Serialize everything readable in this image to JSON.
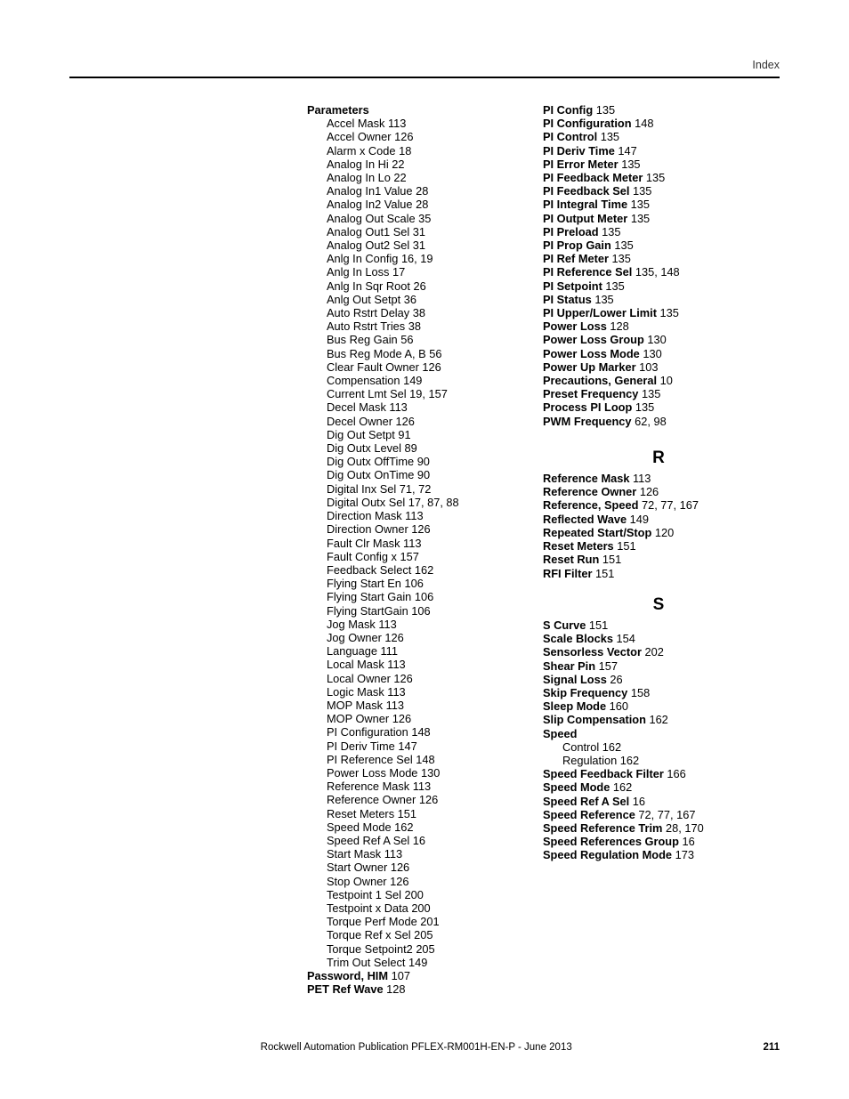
{
  "header": {
    "section": "Index"
  },
  "footer": {
    "publication": "Rockwell Automation Publication PFLEX-RM001H-EN-P - June 2013",
    "page": "211"
  },
  "left_column": {
    "sections": [
      {
        "head": "Parameters",
        "subs": [
          "Accel Mask 113",
          "Accel Owner 126",
          "Alarm x Code 18",
          "Analog In Hi 22",
          "Analog In Lo 22",
          "Analog In1 Value 28",
          "Analog In2 Value 28",
          "Analog Out Scale 35",
          "Analog Out1 Sel 31",
          "Analog Out2 Sel 31",
          "Anlg In Config 16, 19",
          "Anlg In Loss 17",
          "Anlg In Sqr Root 26",
          "Anlg Out Setpt 36",
          "Auto Rstrt Delay 38",
          "Auto Rstrt Tries 38",
          "Bus Reg Gain 56",
          "Bus Reg Mode A, B 56",
          "Clear Fault Owner 126",
          "Compensation 149",
          "Current Lmt Sel 19, 157",
          "Decel Mask 113",
          "Decel Owner 126",
          "Dig Out Setpt 91",
          "Dig Outx Level 89",
          "Dig Outx OffTime 90",
          "Dig Outx OnTime 90",
          "Digital Inx Sel 71, 72",
          "Digital Outx Sel 17, 87, 88",
          "Direction Mask 113",
          "Direction Owner 126",
          "Fault Clr Mask 113",
          "Fault Config x 157",
          "Feedback Select 162",
          "Flying Start En 106",
          "Flying Start Gain 106",
          "Flying StartGain 106",
          "Jog Mask 113",
          "Jog Owner 126",
          "Language 111",
          "Local Mask 113",
          "Local Owner 126",
          "Logic Mask 113",
          "MOP Mask 113",
          "MOP Owner 126",
          "PI Configuration 148",
          "PI Deriv Time 147",
          "PI Reference Sel 148",
          "Power Loss Mode 130",
          "Reference Mask 113",
          "Reference Owner 126",
          "Reset Meters 151",
          "Speed Mode 162",
          "Speed Ref A Sel 16",
          "Start Mask 113",
          "Start Owner 126",
          "Stop Owner 126",
          "Testpoint 1 Sel 200",
          "Testpoint x Data 200",
          "Torque Perf Mode 201",
          "Torque Ref x Sel 205",
          "Torque Setpoint2 205",
          "Trim Out Select 149"
        ]
      },
      {
        "term": "Password, HIM",
        "pages": " 107"
      },
      {
        "term": "PET Ref Wave",
        "pages": " 128"
      }
    ]
  },
  "right_column": {
    "top_entries": [
      {
        "term": "PI Config",
        "pages": " 135"
      },
      {
        "term": "PI Configuration",
        "pages": " 148"
      },
      {
        "term": "PI Control",
        "pages": " 135"
      },
      {
        "term": "PI Deriv Time",
        "pages": " 147"
      },
      {
        "term": "PI Error Meter",
        "pages": " 135"
      },
      {
        "term": "PI Feedback Meter",
        "pages": " 135"
      },
      {
        "term": "PI Feedback Sel",
        "pages": " 135"
      },
      {
        "term": "PI Integral Time",
        "pages": " 135"
      },
      {
        "term": "PI Output Meter",
        "pages": " 135"
      },
      {
        "term": "PI Preload",
        "pages": " 135"
      },
      {
        "term": "PI Prop Gain",
        "pages": " 135"
      },
      {
        "term": "PI Ref Meter",
        "pages": " 135"
      },
      {
        "term": "PI Reference Sel",
        "pages": " 135, 148"
      },
      {
        "term": "PI Setpoint",
        "pages": " 135"
      },
      {
        "term": "PI Status",
        "pages": " 135"
      },
      {
        "term": "PI Upper/Lower Limit",
        "pages": " 135"
      },
      {
        "term": "Power Loss",
        "pages": " 128"
      },
      {
        "term": "Power Loss Group",
        "pages": " 130"
      },
      {
        "term": "Power Loss Mode",
        "pages": " 130"
      },
      {
        "term": "Power Up Marker",
        "pages": " 103"
      },
      {
        "term": "Precautions, General",
        "pages": " 10"
      },
      {
        "term": "Preset Frequency",
        "pages": " 135"
      },
      {
        "term": "Process PI Loop",
        "pages": " 135"
      },
      {
        "term": "PWM Frequency",
        "pages": " 62, 98"
      }
    ],
    "sections": [
      {
        "letter": "R",
        "entries": [
          {
            "term": "Reference Mask",
            "pages": " 113"
          },
          {
            "term": "Reference Owner",
            "pages": " 126"
          },
          {
            "term": "Reference, Speed",
            "pages": " 72, 77, 167"
          },
          {
            "term": "Reflected Wave",
            "pages": " 149"
          },
          {
            "term": "Repeated Start/Stop",
            "pages": " 120"
          },
          {
            "term": "Reset Meters",
            "pages": " 151"
          },
          {
            "term": "Reset Run",
            "pages": " 151"
          },
          {
            "term": "RFI Filter",
            "pages": " 151"
          }
        ]
      },
      {
        "letter": "S",
        "entries": [
          {
            "term": "S Curve",
            "pages": " 151"
          },
          {
            "term": "Scale Blocks",
            "pages": " 154"
          },
          {
            "term": "Sensorless Vector",
            "pages": " 202"
          },
          {
            "term": "Shear Pin",
            "pages": " 157"
          },
          {
            "term": "Signal Loss",
            "pages": " 26"
          },
          {
            "term": "Skip Frequency",
            "pages": " 158"
          },
          {
            "term": "Sleep Mode",
            "pages": " 160"
          },
          {
            "term": "Slip Compensation",
            "pages": " 162"
          },
          {
            "term": "Speed",
            "pages": "",
            "subs": [
              "Control 162",
              "Regulation 162"
            ]
          },
          {
            "term": "Speed Feedback Filter",
            "pages": " 166"
          },
          {
            "term": "Speed Mode",
            "pages": " 162"
          },
          {
            "term": "Speed Ref A Sel",
            "pages": " 16"
          },
          {
            "term": "Speed Reference",
            "pages": " 72, 77, 167"
          },
          {
            "term": "Speed Reference Trim",
            "pages": " 28, 170"
          },
          {
            "term": "Speed References Group",
            "pages": " 16"
          },
          {
            "term": "Speed Regulation Mode",
            "pages": " 173"
          }
        ]
      }
    ]
  }
}
